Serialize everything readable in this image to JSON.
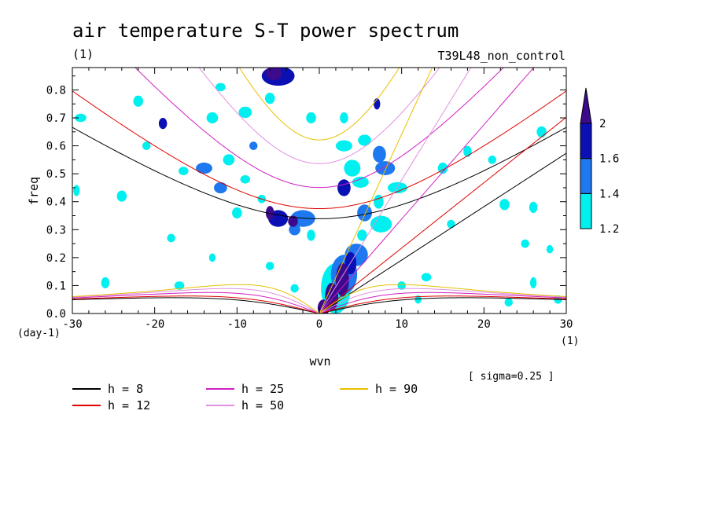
{
  "chart_data": {
    "type": "heatmap",
    "title": "air temperature S-T power spectrum",
    "title_unit": "(1)",
    "run_label": "T39L48_non_control",
    "xlabel": "wvn",
    "x_unit": "(1)",
    "ylabel": "freq",
    "y_unit": "(day-1)",
    "annotation": "[ sigma=0.25 ]",
    "xlim": [
      -30,
      30
    ],
    "ylim": [
      0,
      0.88
    ],
    "x_ticks": [
      -30,
      -20,
      -10,
      0,
      10,
      20,
      30
    ],
    "x_tick_labels": [
      "-30",
      "-20",
      "-10",
      "0",
      "10",
      "20",
      "30"
    ],
    "y_ticks": [
      0,
      0.1,
      0.2,
      0.3,
      0.4,
      0.5,
      0.6,
      0.7,
      0.8
    ],
    "y_tick_labels": [
      "0.0",
      "0.1",
      "0.2",
      "0.3",
      "0.4",
      "0.5",
      "0.6",
      "0.7",
      "0.8"
    ],
    "colorbar": {
      "levels": [
        1.2,
        1.4,
        1.6,
        2
      ],
      "level_labels": [
        "1.2",
        "1.4",
        "1.6",
        "2"
      ],
      "colors": [
        "#00f0f0",
        "#1e78f0",
        "#0a10b4",
        "#3c0a8c"
      ]
    },
    "dispersion_curves": [
      {
        "name": "h =  8",
        "h": 8,
        "color": "#000000"
      },
      {
        "name": "h = 12",
        "h": 12,
        "color": "#e00000"
      },
      {
        "name": "h = 25",
        "h": 25,
        "color": "#d020c0"
      },
      {
        "name": "h = 50",
        "h": 50,
        "color": "#e090e0"
      },
      {
        "name": "h = 90",
        "h": 90,
        "color": "#e8c000"
      }
    ],
    "regions": [
      {
        "x": 0.5,
        "y": 0.02,
        "rx": 0.7,
        "ry": 0.03,
        "v": 2.0
      },
      {
        "x": 1.5,
        "y": 0.06,
        "rx": 0.8,
        "ry": 0.05,
        "v": 2.0
      },
      {
        "x": 2.8,
        "y": 0.12,
        "rx": 0.8,
        "ry": 0.06,
        "v": 2.0
      },
      {
        "x": 3.8,
        "y": 0.18,
        "rx": 0.7,
        "ry": 0.04,
        "v": 1.6
      },
      {
        "x": 2.0,
        "y": 0.09,
        "rx": 1.8,
        "ry": 0.09,
        "v": 1.2
      },
      {
        "x": 3.0,
        "y": 0.14,
        "rx": 1.6,
        "ry": 0.07,
        "v": 1.4
      },
      {
        "x": 4.5,
        "y": 0.21,
        "rx": 1.4,
        "ry": 0.04,
        "v": 1.4
      },
      {
        "x": 5.2,
        "y": 0.28,
        "rx": 0.6,
        "ry": 0.02,
        "v": 1.2
      },
      {
        "x": 7.5,
        "y": 0.32,
        "rx": 1.3,
        "ry": 0.03,
        "v": 1.2
      },
      {
        "x": 5.5,
        "y": 0.36,
        "rx": 0.9,
        "ry": 0.03,
        "v": 1.4
      },
      {
        "x": 7.2,
        "y": 0.4,
        "rx": 0.6,
        "ry": 0.025,
        "v": 1.2
      },
      {
        "x": 3.0,
        "y": 0.45,
        "rx": 0.8,
        "ry": 0.03,
        "v": 1.6
      },
      {
        "x": 5.0,
        "y": 0.47,
        "rx": 1.0,
        "ry": 0.02,
        "v": 1.2
      },
      {
        "x": 9.5,
        "y": 0.45,
        "rx": 1.2,
        "ry": 0.02,
        "v": 1.2
      },
      {
        "x": 4.0,
        "y": 0.52,
        "rx": 1.0,
        "ry": 0.03,
        "v": 1.2
      },
      {
        "x": 8.0,
        "y": 0.52,
        "rx": 1.2,
        "ry": 0.025,
        "v": 1.4
      },
      {
        "x": 7.3,
        "y": 0.57,
        "rx": 0.8,
        "ry": 0.03,
        "v": 1.4
      },
      {
        "x": 3.0,
        "y": 0.6,
        "rx": 1.0,
        "ry": 0.02,
        "v": 1.2
      },
      {
        "x": 5.5,
        "y": 0.62,
        "rx": 0.8,
        "ry": 0.02,
        "v": 1.2
      },
      {
        "x": 7.0,
        "y": 0.75,
        "rx": 0.4,
        "ry": 0.02,
        "v": 1.6
      },
      {
        "x": 3.0,
        "y": 0.7,
        "rx": 0.5,
        "ry": 0.02,
        "v": 1.2
      },
      {
        "x": -5.0,
        "y": 0.34,
        "rx": 1.2,
        "ry": 0.03,
        "v": 1.6
      },
      {
        "x": -2.0,
        "y": 0.34,
        "rx": 1.5,
        "ry": 0.03,
        "v": 1.4
      },
      {
        "x": -3.2,
        "y": 0.33,
        "rx": 0.6,
        "ry": 0.02,
        "v": 2.0
      },
      {
        "x": -6.0,
        "y": 0.36,
        "rx": 0.5,
        "ry": 0.025,
        "v": 2.0
      },
      {
        "x": -3.0,
        "y": 0.3,
        "rx": 0.7,
        "ry": 0.02,
        "v": 1.4
      },
      {
        "x": -1.0,
        "y": 0.28,
        "rx": 0.5,
        "ry": 0.02,
        "v": 1.2
      },
      {
        "x": -5.5,
        "y": 0.86,
        "rx": 1.0,
        "ry": 0.025,
        "v": 2.0
      },
      {
        "x": -5.0,
        "y": 0.85,
        "rx": 2.0,
        "ry": 0.035,
        "v": 1.6
      },
      {
        "x": -14.0,
        "y": 0.52,
        "rx": 1.0,
        "ry": 0.02,
        "v": 1.4
      },
      {
        "x": -16.5,
        "y": 0.51,
        "rx": 0.6,
        "ry": 0.015,
        "v": 1.2
      },
      {
        "x": -12.0,
        "y": 0.45,
        "rx": 0.8,
        "ry": 0.02,
        "v": 1.4
      },
      {
        "x": -9.0,
        "y": 0.48,
        "rx": 0.6,
        "ry": 0.015,
        "v": 1.2
      },
      {
        "x": -11.0,
        "y": 0.55,
        "rx": 0.7,
        "ry": 0.02,
        "v": 1.2
      },
      {
        "x": -19.0,
        "y": 0.68,
        "rx": 0.5,
        "ry": 0.02,
        "v": 1.6
      },
      {
        "x": -13.0,
        "y": 0.7,
        "rx": 0.7,
        "ry": 0.02,
        "v": 1.2
      },
      {
        "x": -9.0,
        "y": 0.72,
        "rx": 0.8,
        "ry": 0.02,
        "v": 1.2
      },
      {
        "x": -6.0,
        "y": 0.77,
        "rx": 0.6,
        "ry": 0.02,
        "v": 1.2
      },
      {
        "x": -1.0,
        "y": 0.7,
        "rx": 0.6,
        "ry": 0.02,
        "v": 1.2
      },
      {
        "x": -21.0,
        "y": 0.6,
        "rx": 0.5,
        "ry": 0.015,
        "v": 1.2
      },
      {
        "x": -24.0,
        "y": 0.42,
        "rx": 0.6,
        "ry": 0.02,
        "v": 1.2
      },
      {
        "x": -29.0,
        "y": 0.7,
        "rx": 0.7,
        "ry": 0.015,
        "v": 1.2
      },
      {
        "x": -29.5,
        "y": 0.44,
        "rx": 0.4,
        "ry": 0.02,
        "v": 1.2
      },
      {
        "x": -26.0,
        "y": 0.11,
        "rx": 0.5,
        "ry": 0.02,
        "v": 1.2
      },
      {
        "x": -17.0,
        "y": 0.1,
        "rx": 0.6,
        "ry": 0.015,
        "v": 1.2
      },
      {
        "x": -6.0,
        "y": 0.17,
        "rx": 0.5,
        "ry": 0.015,
        "v": 1.2
      },
      {
        "x": -3.0,
        "y": 0.09,
        "rx": 0.5,
        "ry": 0.015,
        "v": 1.2
      },
      {
        "x": -10.0,
        "y": 0.36,
        "rx": 0.6,
        "ry": 0.02,
        "v": 1.2
      },
      {
        "x": 15.0,
        "y": 0.52,
        "rx": 0.6,
        "ry": 0.02,
        "v": 1.2
      },
      {
        "x": 18.0,
        "y": 0.58,
        "rx": 0.5,
        "ry": 0.02,
        "v": 1.2
      },
      {
        "x": 22.5,
        "y": 0.39,
        "rx": 0.6,
        "ry": 0.02,
        "v": 1.2
      },
      {
        "x": 21.0,
        "y": 0.55,
        "rx": 0.5,
        "ry": 0.015,
        "v": 1.2
      },
      {
        "x": 26.0,
        "y": 0.38,
        "rx": 0.5,
        "ry": 0.02,
        "v": 1.2
      },
      {
        "x": 27.0,
        "y": 0.65,
        "rx": 0.6,
        "ry": 0.02,
        "v": 1.2
      },
      {
        "x": 28.0,
        "y": 0.23,
        "rx": 0.4,
        "ry": 0.015,
        "v": 1.2
      },
      {
        "x": 26.0,
        "y": 0.11,
        "rx": 0.4,
        "ry": 0.02,
        "v": 1.2
      },
      {
        "x": 29.0,
        "y": 0.05,
        "rx": 0.5,
        "ry": 0.015,
        "v": 1.2
      },
      {
        "x": 23.0,
        "y": 0.04,
        "rx": 0.5,
        "ry": 0.015,
        "v": 1.2
      },
      {
        "x": 13.0,
        "y": 0.13,
        "rx": 0.6,
        "ry": 0.015,
        "v": 1.2
      },
      {
        "x": 10.0,
        "y": 0.1,
        "rx": 0.5,
        "ry": 0.015,
        "v": 1.2
      },
      {
        "x": 25.0,
        "y": 0.25,
        "rx": 0.5,
        "ry": 0.015,
        "v": 1.2
      },
      {
        "x": -18.0,
        "y": 0.27,
        "rx": 0.5,
        "ry": 0.015,
        "v": 1.2
      },
      {
        "x": -13.0,
        "y": 0.2,
        "rx": 0.4,
        "ry": 0.015,
        "v": 1.2
      },
      {
        "x": 16.0,
        "y": 0.32,
        "rx": 0.5,
        "ry": 0.015,
        "v": 1.2
      },
      {
        "x": 12.0,
        "y": 0.05,
        "rx": 0.4,
        "ry": 0.015,
        "v": 1.2
      },
      {
        "x": -22.0,
        "y": 0.76,
        "rx": 0.6,
        "ry": 0.02,
        "v": 1.2
      },
      {
        "x": -12.0,
        "y": 0.81,
        "rx": 0.6,
        "ry": 0.015,
        "v": 1.2
      },
      {
        "x": -8.0,
        "y": 0.6,
        "rx": 0.5,
        "ry": 0.015,
        "v": 1.4
      },
      {
        "x": -7.0,
        "y": 0.41,
        "rx": 0.5,
        "ry": 0.015,
        "v": 1.2
      }
    ]
  }
}
